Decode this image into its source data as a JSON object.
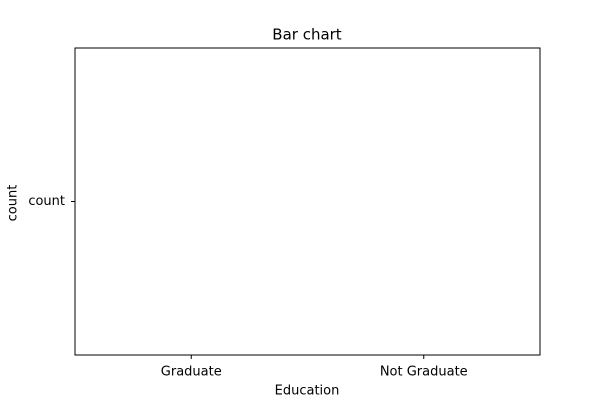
{
  "chart_data": {
    "type": "bar",
    "title": "Bar chart",
    "categories": [
      "Graduate",
      "Not Graduate"
    ],
    "y_categories": [
      "count"
    ],
    "xlabel": "Education",
    "ylabel": "count"
  }
}
